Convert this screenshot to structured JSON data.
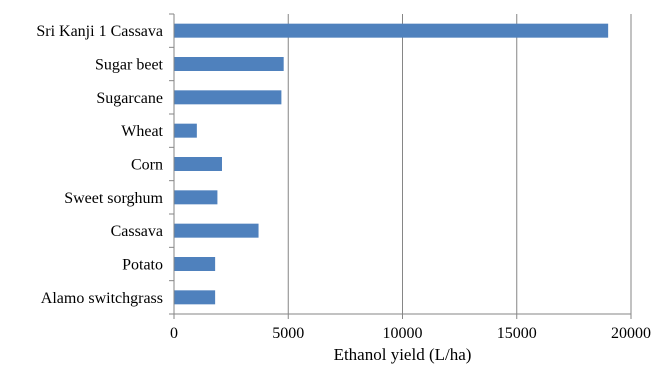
{
  "chart_data": {
    "type": "bar",
    "orientation": "horizontal",
    "categories": [
      "Sri Kanji 1 Cassava",
      "Sugar beet",
      "Sugarcane",
      "Wheat",
      "Corn",
      "Sweet sorghum",
      "Cassava",
      "Potato",
      "Alamo switchgrass"
    ],
    "series": [
      {
        "values": [
          19000,
          4800,
          4700,
          1000,
          2100,
          1900,
          3700,
          1800,
          1800
        ]
      }
    ],
    "xlabel": "Ethanol yield (L/ha)",
    "ylabel": "",
    "xlim": [
      0,
      20000
    ],
    "xticks": [
      0,
      5000,
      10000,
      15000,
      20000
    ],
    "xtick_labels": [
      "0",
      "5000",
      "10000",
      "15000",
      "20000"
    ],
    "grid": "vertical",
    "legend": "none",
    "colors": {
      "bar": "#4f81bd",
      "grid": "#868686",
      "axis": "#868686"
    }
  }
}
